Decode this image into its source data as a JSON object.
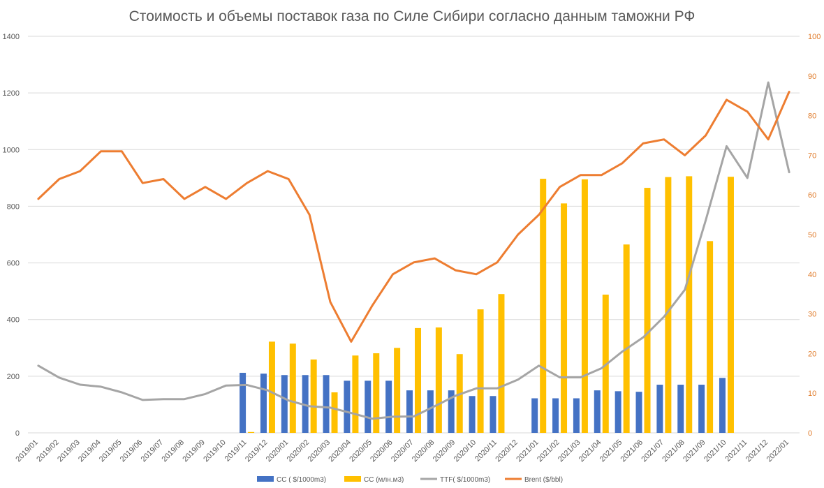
{
  "chart_data": {
    "type": "bar",
    "title": "Стоимость и объемы поставок газа по Силе Сибири согласно данным таможни РФ",
    "categories": [
      "2019/01",
      "2019/02",
      "2019/03",
      "2019/04",
      "2019/05",
      "2019/06",
      "2019/07",
      "2019/08",
      "2019/09",
      "2019/10",
      "2019/11",
      "2019/12",
      "2020/01",
      "2020/02",
      "2020/03",
      "2020/04",
      "2020/05",
      "2020/06",
      "2020/07",
      "2020/08",
      "2020/09",
      "2020/10",
      "2020/11",
      "2020/12",
      "2021/01",
      "2021/02",
      "2021/03",
      "2021/04",
      "2021/05",
      "2021/06",
      "2021/07",
      "2021/08",
      "2021/09",
      "2021/10",
      "2021/11",
      "2021/12",
      "2022/01"
    ],
    "y_left": {
      "min": 0,
      "max": 1400,
      "ticks": [
        0,
        200,
        400,
        600,
        800,
        1000,
        1200,
        1400
      ]
    },
    "y_right": {
      "min": 0,
      "max": 100,
      "ticks": [
        0,
        10,
        20,
        30,
        40,
        50,
        60,
        70,
        80,
        90,
        100
      ]
    },
    "gridlines": true,
    "legend_position": "bottom",
    "series": [
      {
        "name": "CC ( $/1000m3)",
        "kind": "bar",
        "axis": "left",
        "color": "#4472C4",
        "values": [
          null,
          null,
          null,
          null,
          null,
          null,
          null,
          null,
          null,
          null,
          212,
          209,
          204,
          204,
          204,
          184,
          184,
          184,
          150,
          150,
          150,
          130,
          130,
          null,
          122,
          122,
          122,
          150,
          147,
          145,
          170,
          170,
          170,
          194,
          null,
          null,
          null
        ]
      },
      {
        "name": "CC (млн.м3)",
        "kind": "bar",
        "axis": "left",
        "color": "#FFC000",
        "values": [
          null,
          null,
          null,
          null,
          null,
          null,
          null,
          null,
          null,
          null,
          3,
          322,
          315,
          259,
          143,
          273,
          281,
          300,
          370,
          372,
          278,
          436,
          490,
          null,
          897,
          810,
          895,
          488,
          665,
          865,
          903,
          906,
          677,
          904,
          null,
          null,
          null
        ]
      },
      {
        "name": "TTF( $/1000m3)",
        "kind": "line",
        "axis": "left",
        "color": "#A5A5A5",
        "values": [
          237,
          195,
          170,
          163,
          143,
          116,
          119,
          119,
          137,
          167,
          169,
          150,
          114,
          94,
          89,
          70,
          50,
          57,
          58,
          94,
          131,
          157,
          157,
          188,
          237,
          196,
          196,
          228,
          287,
          337,
          410,
          505,
          750,
          1012,
          900,
          1237,
          920
        ]
      },
      {
        "name": "Brent ($/bbl)",
        "kind": "line",
        "axis": "right",
        "color": "#ED7D31",
        "values": [
          59,
          64,
          66,
          71,
          71,
          63,
          64,
          59,
          62,
          59,
          63,
          66,
          64,
          55,
          33,
          23,
          32,
          40,
          43,
          44,
          41,
          40,
          43,
          50,
          55,
          62,
          65,
          65,
          68,
          73,
          74,
          70,
          75,
          84,
          81,
          74,
          86
        ]
      }
    ]
  }
}
